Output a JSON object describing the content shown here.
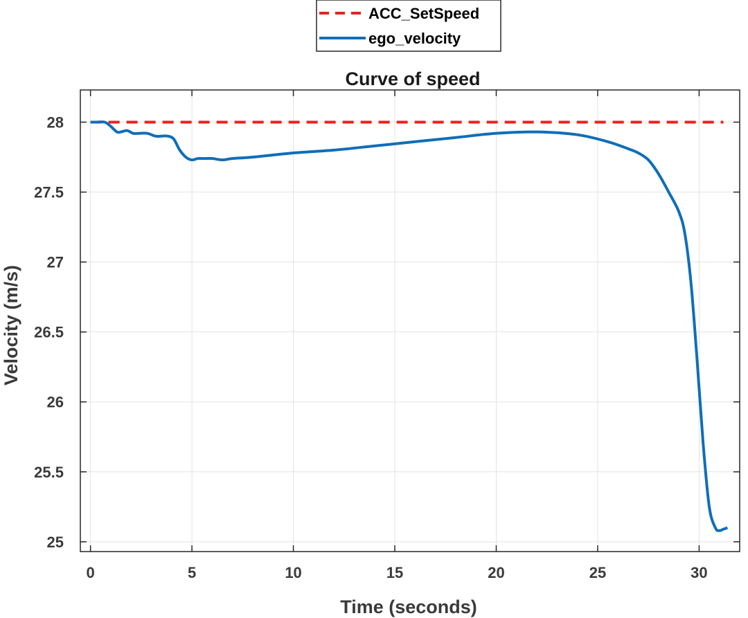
{
  "chart_data": {
    "type": "line",
    "title": "Curve of speed",
    "xlabel": "Time (seconds)",
    "ylabel": "Velocity (m/s)",
    "xlim": [
      -0.5,
      32
    ],
    "ylim": [
      24.93,
      28.23
    ],
    "xticks": [
      0,
      5,
      10,
      15,
      20,
      25,
      30
    ],
    "yticks": [
      25,
      25.5,
      26,
      26.5,
      27,
      27.5,
      28
    ],
    "xtick_labels": [
      "0",
      "5",
      "10",
      "15",
      "20",
      "25",
      "30"
    ],
    "ytick_labels": [
      "25",
      "25.5",
      "26",
      "26.5",
      "27",
      "27.5",
      "28"
    ],
    "grid": true,
    "legend_position": "top-center outside",
    "series": [
      {
        "name": "ACC_SetSpeed",
        "style": "dashed",
        "color": "#e8221f",
        "x": [
          0,
          31.2
        ],
        "y": [
          28,
          28
        ]
      },
      {
        "name": "ego_velocity",
        "style": "solid",
        "color": "#0f6eb8",
        "x": [
          0,
          0.3,
          0.7,
          1.0,
          1.3,
          1.5,
          1.8,
          2.1,
          2.4,
          2.8,
          3.2,
          3.5,
          3.8,
          4.1,
          4.4,
          4.7,
          5.0,
          5.3,
          5.6,
          6.0,
          6.5,
          7.0,
          8.0,
          10.0,
          12.0,
          14.0,
          16.0,
          18.0,
          20.0,
          22.0,
          24.0,
          25.5,
          26.5,
          27.0,
          27.5,
          28.0,
          28.5,
          29.0,
          29.3,
          29.6,
          29.9,
          30.2,
          30.5,
          30.8,
          31.0,
          31.2,
          31.4
        ],
        "y": [
          28.0,
          28.0,
          28.0,
          27.97,
          27.93,
          27.93,
          27.94,
          27.92,
          27.92,
          27.92,
          27.9,
          27.9,
          27.9,
          27.88,
          27.8,
          27.75,
          27.73,
          27.74,
          27.74,
          27.74,
          27.73,
          27.74,
          27.75,
          27.78,
          27.8,
          27.83,
          27.86,
          27.89,
          27.92,
          27.93,
          27.91,
          27.86,
          27.81,
          27.78,
          27.73,
          27.63,
          27.5,
          27.36,
          27.2,
          26.85,
          26.3,
          25.7,
          25.25,
          25.1,
          25.08,
          25.09,
          25.1
        ]
      }
    ]
  }
}
